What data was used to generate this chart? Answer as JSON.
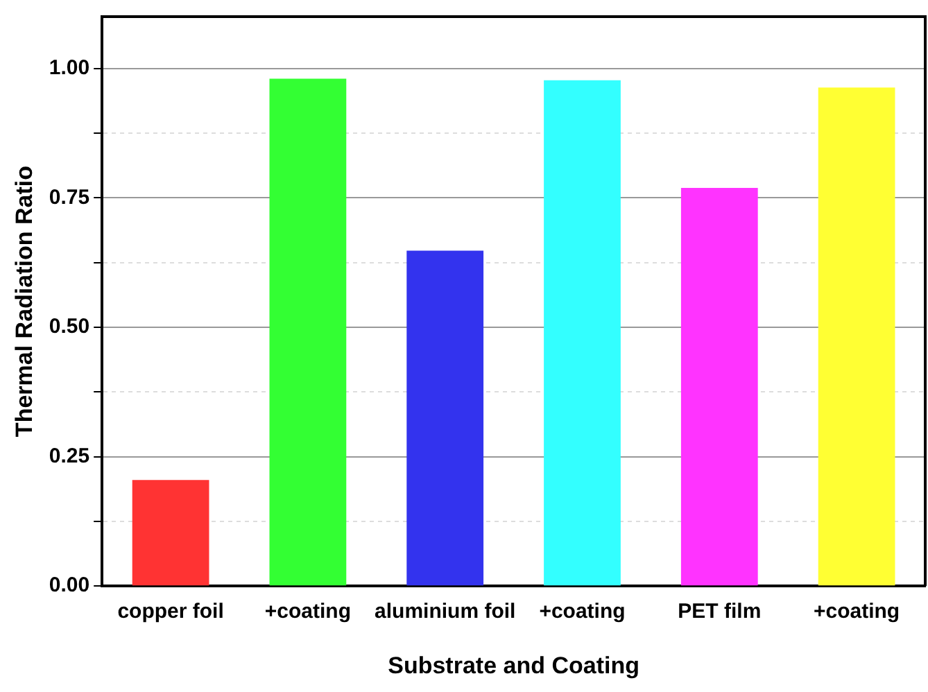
{
  "chart_data": {
    "type": "bar",
    "xlabel": "Substrate and Coating",
    "ylabel": "Thermal Radiation Ratio",
    "categories": [
      "copper foil",
      "+coating",
      "aluminium foil",
      "+coating",
      "PET film",
      "+coating"
    ],
    "values": [
      0.205,
      0.98,
      0.648,
      0.977,
      0.769,
      0.963
    ],
    "colors": [
      "#ff3333",
      "#33ff33",
      "#3333ee",
      "#33ffff",
      "#ff33ff",
      "#ffff33"
    ],
    "ylim": [
      0,
      1.1
    ],
    "yticks": [
      {
        "value": 0,
        "label": "0.00"
      },
      {
        "value": 0.125,
        "label": null
      },
      {
        "value": 0.25,
        "label": "0.25"
      },
      {
        "value": 0.375,
        "label": null
      },
      {
        "value": 0.5,
        "label": "0.50"
      },
      {
        "value": 0.625,
        "label": null
      },
      {
        "value": 0.75,
        "label": "0.75"
      },
      {
        "value": 0.875,
        "label": null
      },
      {
        "value": 1,
        "label": "1.00"
      }
    ],
    "grid": "y"
  }
}
